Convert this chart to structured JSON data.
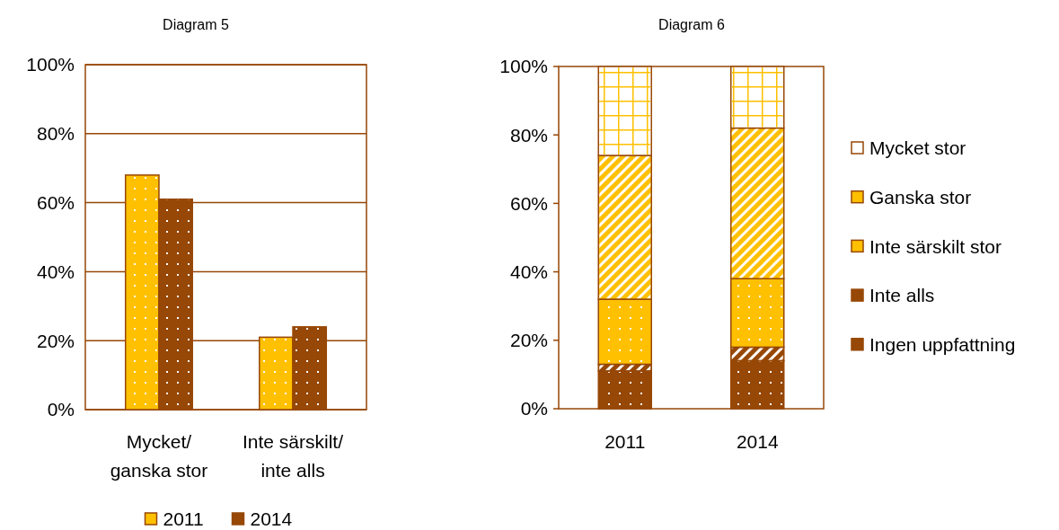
{
  "chart_data": [
    {
      "type": "bar",
      "title": "Diagram 5",
      "categories": [
        "Mycket/\nganska stor",
        "Inte särskilt/\ninte alls"
      ],
      "series": [
        {
          "name": "2011",
          "color": "#ffc000",
          "values": [
            68,
            21
          ]
        },
        {
          "name": "2014",
          "color": "#974706",
          "values": [
            61,
            24
          ]
        }
      ],
      "ylim": [
        0,
        100
      ],
      "yticks": [
        {
          "value": 0,
          "label": "0%"
        },
        {
          "value": 20,
          "label": "20%"
        },
        {
          "value": 40,
          "label": "40%"
        },
        {
          "value": 60,
          "label": "60%"
        },
        {
          "value": 80,
          "label": "80%"
        },
        {
          "value": 100,
          "label": "100%"
        }
      ],
      "grid": "y",
      "legend": "bottom"
    },
    {
      "type": "bar",
      "title": "Diagram 6",
      "categories": [
        "2011",
        "2014"
      ],
      "stacked": true,
      "series": [
        {
          "name": "Ingen uppfattning",
          "color": "#974706",
          "values": [
            11,
            14
          ]
        },
        {
          "name": "Inte alls",
          "color": "#974706",
          "values": [
            2,
            4
          ]
        },
        {
          "name": "Inte särskilt stor",
          "color": "#ffc000",
          "values": [
            19,
            20
          ]
        },
        {
          "name": "Ganska stor",
          "color": "#ffc000",
          "values": [
            42,
            44
          ]
        },
        {
          "name": "Mycket stor",
          "color": "#ffffff",
          "values": [
            26,
            18
          ]
        }
      ],
      "ylim": [
        0,
        100
      ],
      "yticks": [
        {
          "value": 0,
          "label": "0%"
        },
        {
          "value": 20,
          "label": "20%"
        },
        {
          "value": 40,
          "label": "40%"
        },
        {
          "value": 60,
          "label": "60%"
        },
        {
          "value": 80,
          "label": "80%"
        },
        {
          "value": 100,
          "label": "100%"
        }
      ],
      "grid": false,
      "legend": "right"
    }
  ]
}
